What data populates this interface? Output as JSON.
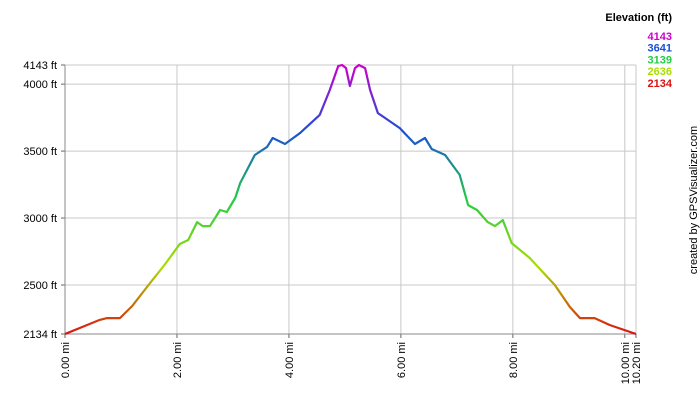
{
  "chart_data": {
    "type": "line",
    "legend_title": "Elevation (ft)",
    "credit": "created by GPSVisualizer.com",
    "color_scale": [
      {
        "value": 4143,
        "color": "#cc00cc"
      },
      {
        "value": 3641,
        "color": "#1a4fd6"
      },
      {
        "value": 3139,
        "color": "#22cc44"
      },
      {
        "value": 2636,
        "color": "#aadd00"
      },
      {
        "value": 2134,
        "color": "#dd1111"
      }
    ],
    "xlim": [
      0,
      10.2
    ],
    "ylim": [
      2134,
      4143
    ],
    "xticks": [
      {
        "value": 0,
        "label": "0.00 mi"
      },
      {
        "value": 2,
        "label": "2.00 mi"
      },
      {
        "value": 4,
        "label": "4.00 mi"
      },
      {
        "value": 6,
        "label": "6.00 mi"
      },
      {
        "value": 8,
        "label": "8.00 mi"
      },
      {
        "value": 10,
        "label": "10.00 mi"
      },
      {
        "value": 10.2,
        "label": "10.20 mi"
      }
    ],
    "yticks": [
      {
        "value": 2134,
        "label": "2134 ft"
      },
      {
        "value": 2500,
        "label": "2500 ft"
      },
      {
        "value": 3000,
        "label": "3000 ft"
      },
      {
        "value": 3500,
        "label": "3500 ft"
      },
      {
        "value": 4000,
        "label": "4000 ft"
      },
      {
        "value": 4143,
        "label": "4143 ft"
      }
    ],
    "grid": true,
    "x": [
      0,
      0.62,
      0.75,
      0.98,
      1.2,
      1.52,
      1.79,
      2.05,
      2.2,
      2.36,
      2.46,
      2.59,
      2.77,
      2.89,
      3.04,
      3.13,
      3.39,
      3.61,
      3.71,
      3.93,
      4.2,
      4.55,
      4.73,
      4.88,
      4.95,
      5.02,
      5.09,
      5.18,
      5.25,
      5.36,
      5.45,
      5.59,
      5.98,
      6.25,
      6.43,
      6.55,
      6.79,
      7.05,
      7.2,
      7.36,
      7.55,
      7.68,
      7.82,
      7.98,
      8.3,
      8.75,
      9.02,
      9.2,
      9.46,
      9.73,
      10.2
    ],
    "values": [
      2134,
      2239,
      2253,
      2253,
      2343,
      2515,
      2657,
      2806,
      2836,
      2970,
      2940,
      2940,
      3060,
      3045,
      3150,
      3262,
      3471,
      3531,
      3598,
      3553,
      3635,
      3770,
      3956,
      4135,
      4143,
      4120,
      3986,
      4120,
      4143,
      4120,
      3956,
      3784,
      3672,
      3553,
      3598,
      3516,
      3471,
      3322,
      3097,
      3060,
      2970,
      2940,
      2985,
      2813,
      2702,
      2500,
      2336,
      2253,
      2253,
      2201,
      2134
    ]
  }
}
